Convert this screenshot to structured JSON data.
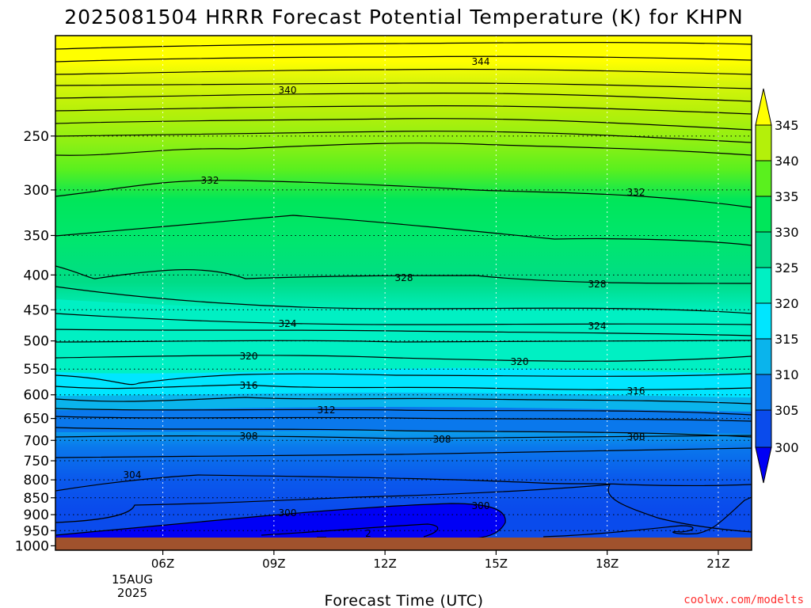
{
  "chart_data": {
    "type": "time-height contour",
    "title": "2025081504 HRRR Forecast Potential Temperature (K) for KHPN",
    "xlabel": "Forecast Time (UTC)",
    "credit": "coolwx.com/modelts",
    "x_ticks": [
      "06Z",
      "09Z",
      "12Z",
      "15Z",
      "18Z",
      "21Z"
    ],
    "x_date_line1": "15AUG",
    "x_date_line2": "2025",
    "x_range_hours": [
      3.1,
      21.9
    ],
    "y_ticks": [
      "250",
      "300",
      "350",
      "400",
      "450",
      "500",
      "550",
      "600",
      "650",
      "700",
      "750",
      "800",
      "850",
      "900",
      "950",
      "1000"
    ],
    "y_axis": "pressure (hPa), reversed, log scale",
    "y_range": [
      1015,
      178
    ],
    "colorbar_labels": [
      "345",
      "340",
      "335",
      "330",
      "325",
      "320",
      "315",
      "310",
      "305",
      "300"
    ],
    "contour_labels": [
      "344",
      "340",
      "332",
      "332",
      "328",
      "328",
      "324",
      "324",
      "320",
      "320",
      "316",
      "316",
      "312",
      "308",
      "308",
      "308",
      "304",
      "300",
      "300",
      "2"
    ],
    "colors": {
      "fill_300_minus": "#0000f5",
      "fill_300_305": "#0a4bec",
      "fill_305_310": "#0a78ec",
      "fill_310_315": "#0ab4ec",
      "fill_315_320": "#00e6ff",
      "fill_320_325": "#00f0c3",
      "fill_325_330": "#00dc87",
      "fill_330_335": "#00e65a",
      "fill_335_340": "#5af01e",
      "fill_340_345": "#b4f00a",
      "fill_345_plus": "#ffff00",
      "ground": "#a0522d",
      "contour": "#000000",
      "grid": "#000000"
    }
  }
}
